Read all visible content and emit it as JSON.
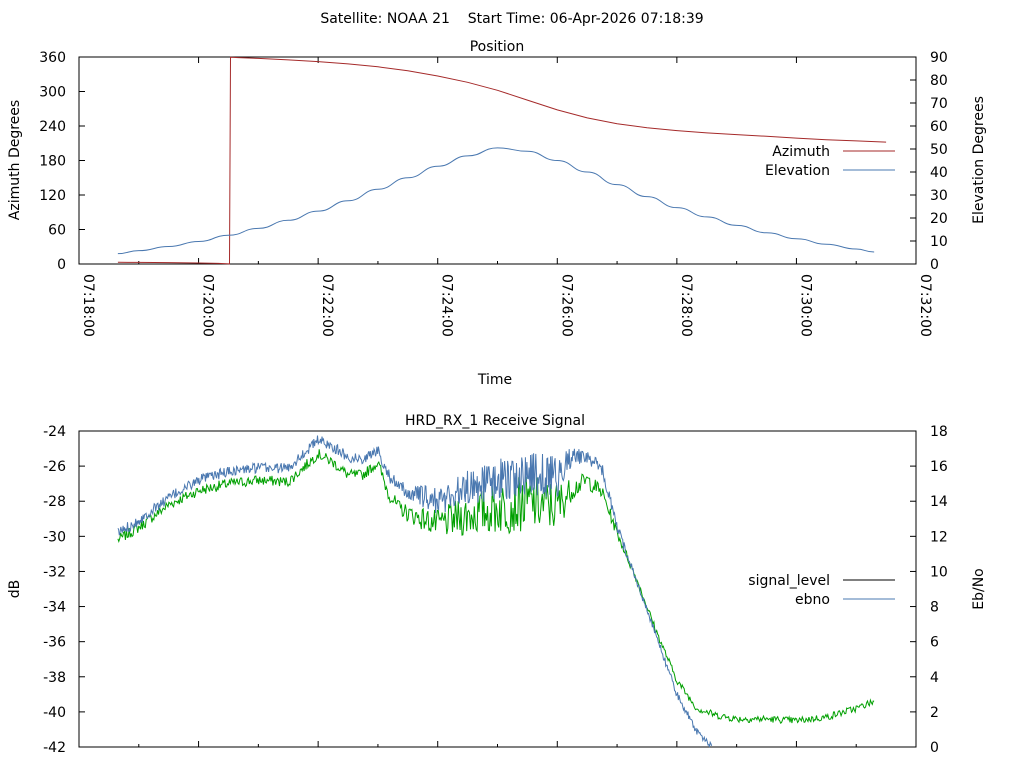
{
  "figure_title": "Satellite: NOAA 21    Start Time: 06-Apr-2026 07:18:39",
  "chart_data": [
    {
      "type": "line",
      "title": "Position",
      "xlabel": "Time",
      "ylabel": "Azimuth Degrees",
      "y2label": "Elevation Degrees",
      "x_ticks": [
        "07:18:00",
        "07:20:00",
        "07:22:00",
        "07:24:00",
        "07:26:00",
        "07:28:00",
        "07:30:00",
        "07:32:00"
      ],
      "xlim": [
        "07:18:00",
        "07:32:00"
      ],
      "ylim": [
        0,
        360
      ],
      "y_ticks": [
        0,
        60,
        120,
        180,
        240,
        300,
        360
      ],
      "y2lim": [
        0,
        90
      ],
      "y2_ticks": [
        0,
        10,
        20,
        30,
        40,
        50,
        60,
        70,
        80,
        90
      ],
      "grid": false,
      "legend_position": "right",
      "series": [
        {
          "name": "Azimuth",
          "axis": "left",
          "color": "#a52a2a",
          "x": [
            "07:18:39",
            "07:19:00",
            "07:19:30",
            "07:20:00",
            "07:20:20",
            "07:20:31",
            "07:20:32",
            "07:20:40",
            "07:21:00",
            "07:21:30",
            "07:22:00",
            "07:22:30",
            "07:23:00",
            "07:23:30",
            "07:24:00",
            "07:24:30",
            "07:25:00",
            "07:25:30",
            "07:26:00",
            "07:26:30",
            "07:27:00",
            "07:27:30",
            "07:28:00",
            "07:28:30",
            "07:29:00",
            "07:29:30",
            "07:30:00",
            "07:30:30",
            "07:31:00",
            "07:31:30",
            "07:31:18"
          ],
          "values": [
            3,
            2.8,
            2.4,
            1.8,
            1,
            0.2,
            359.5,
            359,
            357.5,
            355,
            352,
            348,
            343,
            336,
            327,
            316,
            302,
            285,
            268,
            254,
            244,
            237,
            232,
            228,
            225,
            222,
            219,
            216,
            214,
            212,
            211.5
          ]
        },
        {
          "name": "Elevation",
          "axis": "right",
          "color": "#4a78b0",
          "x": [
            "07:18:39",
            "07:19:00",
            "07:19:30",
            "07:20:00",
            "07:20:30",
            "07:21:00",
            "07:21:30",
            "07:22:00",
            "07:22:30",
            "07:23:00",
            "07:23:30",
            "07:24:00",
            "07:24:30",
            "07:25:00",
            "07:25:30",
            "07:26:00",
            "07:26:30",
            "07:27:00",
            "07:27:30",
            "07:28:00",
            "07:28:30",
            "07:29:00",
            "07:29:30",
            "07:30:00",
            "07:30:30",
            "07:31:00",
            "07:31:18"
          ],
          "values": [
            4.5,
            5.8,
            7.6,
            9.8,
            12.5,
            15.5,
            19,
            23,
            27.5,
            32.5,
            37.5,
            42.5,
            47,
            50.5,
            49,
            45,
            40,
            34.5,
            29.3,
            24.5,
            20.5,
            16.8,
            13.6,
            11,
            8.6,
            6.5,
            5.2
          ]
        }
      ]
    },
    {
      "type": "line",
      "title": "HRD_RX_1 Receive Signal",
      "xlabel": "",
      "ylabel": "dB",
      "y2label": "Eb/No",
      "ylim": [
        -42,
        -24
      ],
      "y_ticks": [
        -24,
        -26,
        -28,
        -30,
        -32,
        -34,
        -36,
        -38,
        -40,
        -42
      ],
      "y2lim": [
        0,
        18
      ],
      "y2_ticks": [
        0,
        2,
        4,
        6,
        8,
        10,
        12,
        14,
        16,
        18
      ],
      "xlim": [
        "07:18:00",
        "07:32:00"
      ],
      "grid": false,
      "legend_position": "right",
      "legend_entries": [
        {
          "name": "signal_level",
          "legend_color": "#000000"
        },
        {
          "name": "ebno",
          "legend_color": "#4a78b0"
        }
      ],
      "series": [
        {
          "name": "signal_level",
          "axis": "left",
          "color": "#00a000",
          "x": [
            "07:18:39",
            "07:19:00",
            "07:19:30",
            "07:20:00",
            "07:20:30",
            "07:21:00",
            "07:21:30",
            "07:22:00",
            "07:22:15",
            "07:22:30",
            "07:22:45",
            "07:23:00",
            "07:23:10",
            "07:23:20",
            "07:23:30",
            "07:24:00",
            "07:24:30",
            "07:25:00",
            "07:25:30",
            "07:26:00",
            "07:26:15",
            "07:26:30",
            "07:26:45",
            "07:27:00",
            "07:27:20",
            "07:27:40",
            "07:28:00",
            "07:28:20",
            "07:28:40",
            "07:29:00",
            "07:29:30",
            "07:30:00",
            "07:30:30",
            "07:31:00",
            "07:31:18"
          ],
          "values": [
            -30.2,
            -29.5,
            -28.2,
            -27.4,
            -27.0,
            -26.8,
            -26.9,
            -25.3,
            -25.8,
            -26.5,
            -26.5,
            -25.8,
            -27.5,
            -28.3,
            -28.7,
            -29.3,
            -28.8,
            -28.4,
            -28.1,
            -28.3,
            -27.3,
            -26.8,
            -27.5,
            -29.8,
            -32.5,
            -35.5,
            -38.2,
            -39.8,
            -40.2,
            -40.4,
            -40.4,
            -40.5,
            -40.3,
            -39.8,
            -39.4
          ],
          "spread": [
            0.3,
            0.3,
            0.3,
            0.3,
            0.3,
            0.3,
            0.3,
            0.3,
            0.3,
            0.3,
            0.3,
            0.3,
            0.4,
            0.4,
            0.5,
            0.8,
            1.2,
            1.5,
            1.6,
            1.5,
            0.6,
            0.5,
            0.4,
            0.3,
            0.2,
            0.2,
            0.2,
            0.2,
            0.2,
            0.2,
            0.2,
            0.2,
            0.2,
            0.2,
            0.2
          ]
        },
        {
          "name": "ebno",
          "axis": "right",
          "color": "#4a78b0",
          "x": [
            "07:18:39",
            "07:19:00",
            "07:19:30",
            "07:20:00",
            "07:20:30",
            "07:21:00",
            "07:21:30",
            "07:22:00",
            "07:22:15",
            "07:22:30",
            "07:22:45",
            "07:23:00",
            "07:23:10",
            "07:23:20",
            "07:23:30",
            "07:24:00",
            "07:24:30",
            "07:25:00",
            "07:25:30",
            "07:26:00",
            "07:26:15",
            "07:26:30",
            "07:26:45",
            "07:27:00",
            "07:27:20",
            "07:27:40",
            "07:28:00",
            "07:28:20",
            "07:28:35"
          ],
          "values": [
            12.2,
            12.9,
            14.2,
            15.2,
            15.7,
            15.9,
            15.9,
            17.5,
            17.1,
            16.5,
            16.4,
            16.9,
            15.6,
            14.8,
            14.5,
            14.0,
            14.8,
            15.2,
            15.5,
            15.4,
            16.6,
            16.5,
            15.8,
            12.5,
            9.4,
            6.2,
            3.0,
            0.9,
            0
          ],
          "spread": [
            0.3,
            0.3,
            0.3,
            0.3,
            0.3,
            0.3,
            0.3,
            0.3,
            0.3,
            0.3,
            0.3,
            0.3,
            0.4,
            0.4,
            0.5,
            0.8,
            1.0,
            1.2,
            1.3,
            1.2,
            0.5,
            0.4,
            0.4,
            0.3,
            0.2,
            0.2,
            0.2,
            0.2,
            0.2
          ]
        }
      ]
    }
  ]
}
